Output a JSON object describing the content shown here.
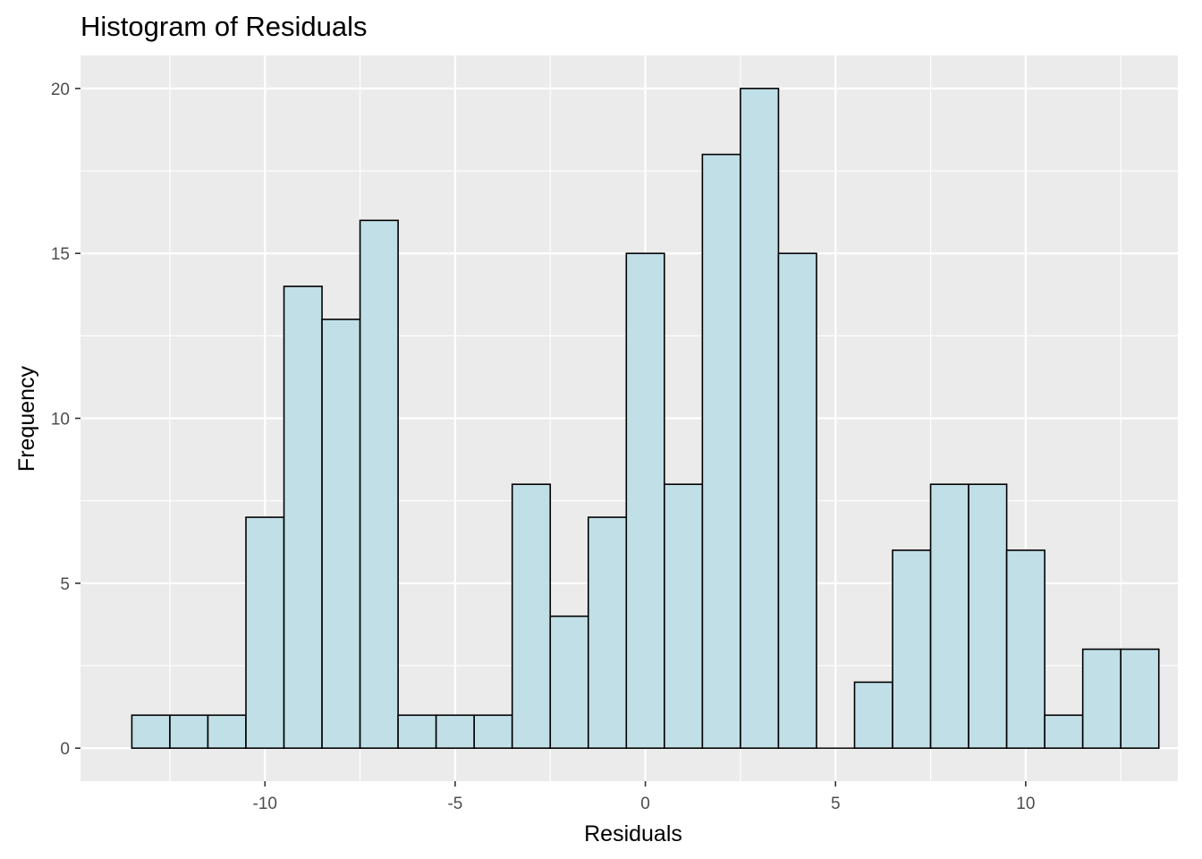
{
  "chart_data": {
    "type": "bar",
    "title": "Histogram of Residuals",
    "xlabel": "Residuals",
    "ylabel": "Frequency",
    "bin_width": 1,
    "bins": [
      {
        "start": -13.5,
        "end": -12.5,
        "count": 1
      },
      {
        "start": -12.5,
        "end": -11.5,
        "count": 1
      },
      {
        "start": -11.5,
        "end": -10.5,
        "count": 1
      },
      {
        "start": -10.5,
        "end": -9.5,
        "count": 7
      },
      {
        "start": -9.5,
        "end": -8.5,
        "count": 14
      },
      {
        "start": -8.5,
        "end": -7.5,
        "count": 13
      },
      {
        "start": -7.5,
        "end": -6.5,
        "count": 16
      },
      {
        "start": -6.5,
        "end": -5.5,
        "count": 1
      },
      {
        "start": -5.5,
        "end": -4.5,
        "count": 1
      },
      {
        "start": -4.5,
        "end": -3.5,
        "count": 1
      },
      {
        "start": -3.5,
        "end": -2.5,
        "count": 8
      },
      {
        "start": -2.5,
        "end": -1.5,
        "count": 4
      },
      {
        "start": -1.5,
        "end": -0.5,
        "count": 7
      },
      {
        "start": -0.5,
        "end": 0.5,
        "count": 15
      },
      {
        "start": 0.5,
        "end": 1.5,
        "count": 8
      },
      {
        "start": 1.5,
        "end": 2.5,
        "count": 18
      },
      {
        "start": 2.5,
        "end": 3.5,
        "count": 20
      },
      {
        "start": 3.5,
        "end": 4.5,
        "count": 15
      },
      {
        "start": 4.5,
        "end": 5.5,
        "count": 0
      },
      {
        "start": 5.5,
        "end": 6.5,
        "count": 2
      },
      {
        "start": 6.5,
        "end": 7.5,
        "count": 6
      },
      {
        "start": 7.5,
        "end": 8.5,
        "count": 8
      },
      {
        "start": 8.5,
        "end": 9.5,
        "count": 8
      },
      {
        "start": 9.5,
        "end": 10.5,
        "count": 6
      },
      {
        "start": 10.5,
        "end": 11.5,
        "count": 1
      },
      {
        "start": 11.5,
        "end": 12.5,
        "count": 3
      },
      {
        "start": 12.5,
        "end": 13.5,
        "count": 3
      }
    ],
    "xlim": [
      -14.85,
      14.0
    ],
    "ylim": [
      -1,
      21
    ],
    "x_ticks": [
      -10,
      -5,
      0,
      5,
      10
    ],
    "x_tick_labels": [
      "-10",
      "-5",
      "0",
      "5",
      "10"
    ],
    "y_ticks": [
      0,
      5,
      10,
      15,
      20
    ],
    "y_tick_labels": [
      "0",
      "5",
      "10",
      "15",
      "20"
    ],
    "grid": true,
    "legend": "none",
    "colors": {
      "bar_fill": "#c1dfe7",
      "bar_stroke": "#000000",
      "panel_background": "#ebebeb",
      "grid": "#ffffff"
    }
  }
}
